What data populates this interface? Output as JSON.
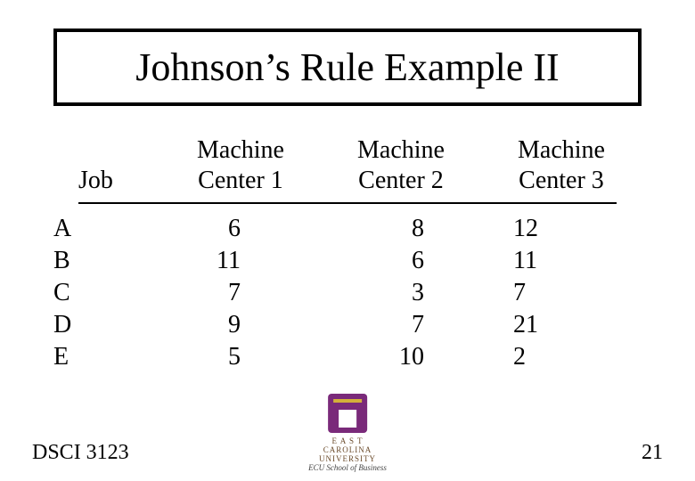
{
  "title": "Johnson’s Rule Example II",
  "table": {
    "headers": {
      "job": "Job",
      "m1_line1": "Machine",
      "m1_line2": "Center 1",
      "m2_line1": "Machine",
      "m2_line2": "Center 2",
      "m3_line1": "Machine",
      "m3_line2": "Center 3"
    },
    "rows": [
      {
        "job": "A",
        "m1": "6",
        "m2": "8",
        "m3": "12"
      },
      {
        "job": "B",
        "m1": "11",
        "m2": "6",
        "m3": "11"
      },
      {
        "job": "C",
        "m1": "7",
        "m2": "3",
        "m3": "  7"
      },
      {
        "job": "D",
        "m1": "9",
        "m2": "7",
        "m3": "21"
      },
      {
        "job": "E",
        "m1": "5",
        "m2": "10",
        "m3": " 2"
      }
    ]
  },
  "footer": {
    "left": "DSCI 3123",
    "page": "21"
  },
  "logo": {
    "text1": "E A S T",
    "text2": "CAROLINA",
    "text3": "UNIVERSITY",
    "sub": "ECU School of Business"
  },
  "style": {
    "title_fontsize": 44,
    "body_fontsize": 28,
    "border_color": "#000000",
    "background_color": "#ffffff",
    "text_color": "#000000",
    "logo_mark_color": "#7a2a7a",
    "logo_bar_color": "#d4b03a"
  }
}
